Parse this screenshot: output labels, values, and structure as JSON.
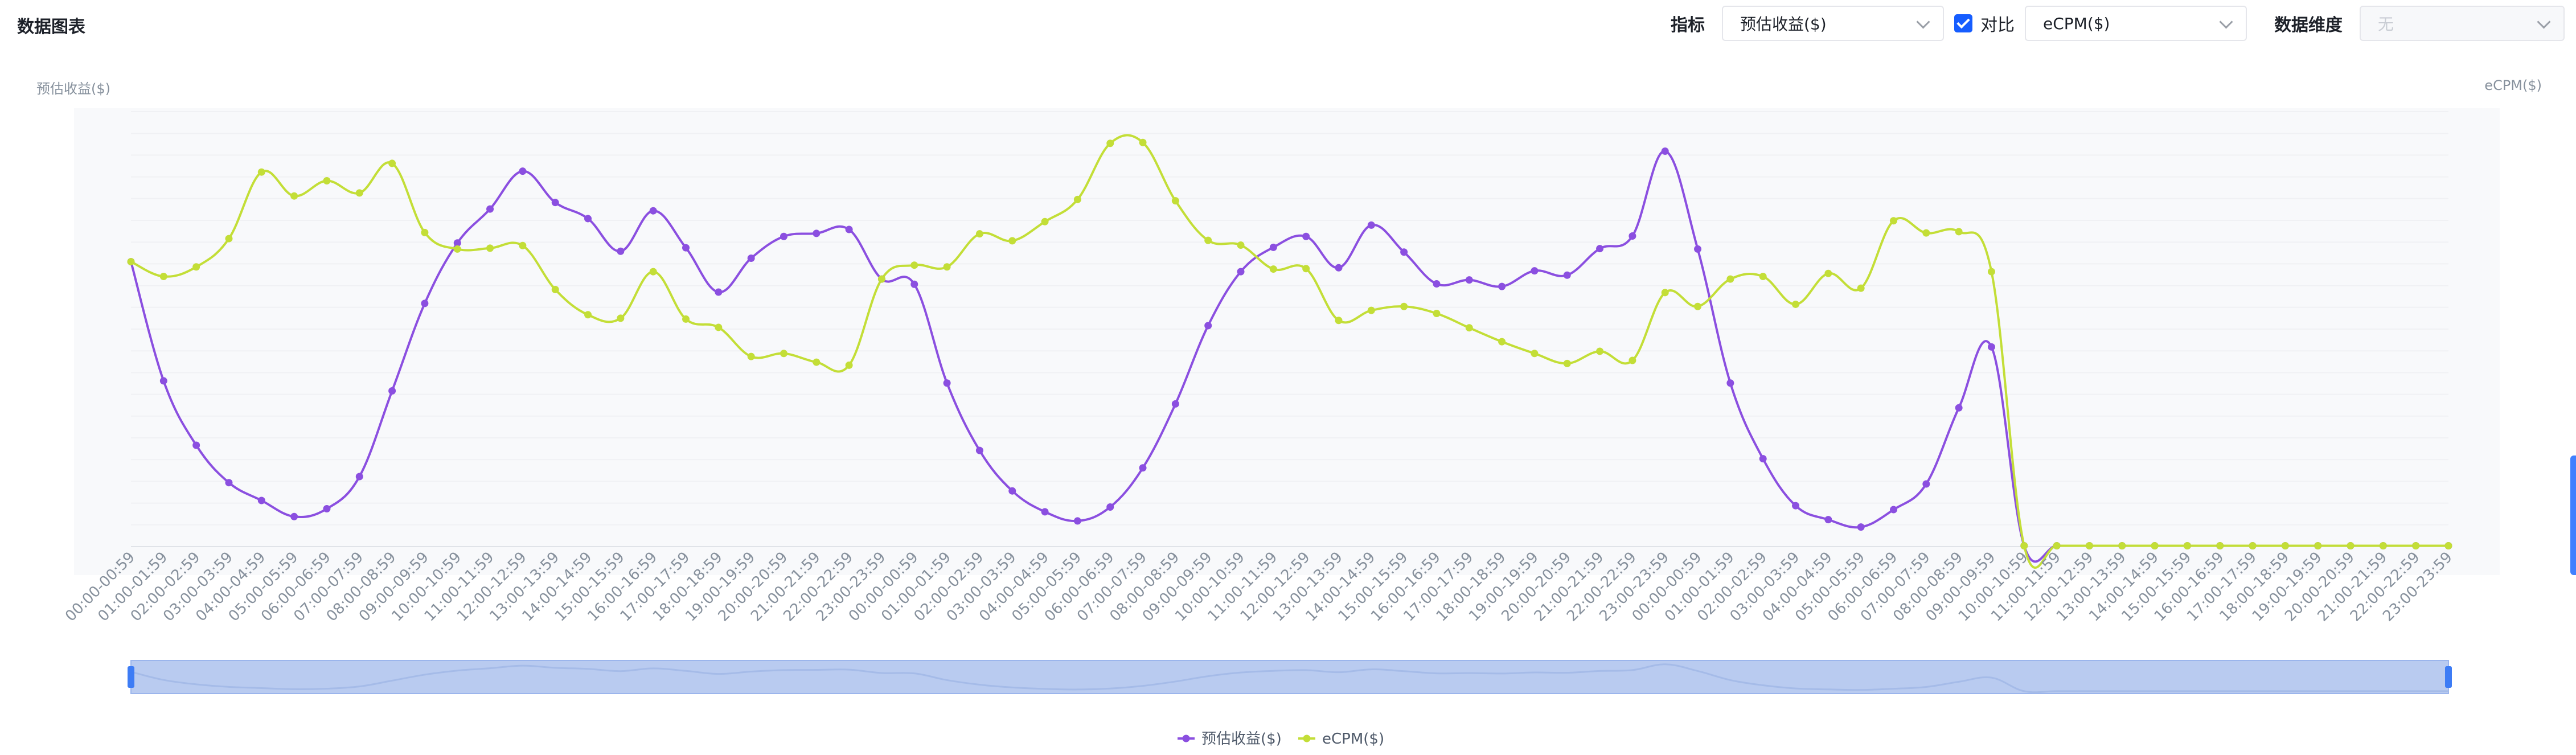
{
  "header": {
    "title": "数据图表",
    "metric_label": "指标",
    "metric_value": "预估收益($)",
    "compare_label": "对比",
    "compare_value": "eCPM($)",
    "dimension_label": "数据维度",
    "dimension_value": "无"
  },
  "colors": {
    "series1": "#8b4fe0",
    "series2": "#c3de37",
    "accent": "#165dff"
  },
  "chart_data": {
    "type": "line",
    "smooth": true,
    "xlabel": "",
    "ylabel": "预估收益($)",
    "y2label": "eCPM($)",
    "grid": true,
    "legend": "bottom-center",
    "zoom_slider": true,
    "x": [
      "00:00-00:59",
      "01:00-01:59",
      "02:00-02:59",
      "03:00-03:59",
      "04:00-04:59",
      "05:00-05:59",
      "06:00-06:59",
      "07:00-07:59",
      "08:00-08:59",
      "09:00-09:59",
      "10:00-10:59",
      "11:00-11:59",
      "12:00-12:59",
      "13:00-13:59",
      "14:00-14:59",
      "15:00-15:59",
      "16:00-16:59",
      "17:00-17:59",
      "18:00-18:59",
      "19:00-19:59",
      "20:00-20:59",
      "21:00-21:59",
      "22:00-22:59",
      "23:00-23:59",
      "00:00-00:59",
      "01:00-01:59",
      "02:00-02:59",
      "03:00-03:59",
      "04:00-04:59",
      "05:00-05:59",
      "06:00-06:59",
      "07:00-07:59",
      "08:00-08:59",
      "09:00-09:59",
      "10:00-10:59",
      "11:00-11:59",
      "12:00-12:59",
      "13:00-13:59",
      "14:00-14:59",
      "15:00-15:59",
      "16:00-16:59",
      "17:00-17:59",
      "18:00-18:59",
      "19:00-19:59",
      "20:00-20:59",
      "21:00-21:59",
      "22:00-22:59",
      "23:00-23:59",
      "00:00-00:59",
      "01:00-01:59",
      "02:00-02:59",
      "03:00-03:59",
      "04:00-04:59",
      "05:00-05:59",
      "06:00-06:59",
      "07:00-07:59",
      "08:00-08:59",
      "09:00-09:59",
      "10:00-10:59",
      "11:00-11:59",
      "12:00-12:59",
      "13:00-13:59",
      "14:00-14:59",
      "15:00-15:59",
      "16:00-16:59",
      "17:00-17:59",
      "18:00-18:59",
      "19:00-19:59",
      "20:00-20:59",
      "21:00-21:59",
      "22:00-22:59",
      "23:00-23:59"
    ],
    "ylim": [
      0,
      100
    ],
    "y2lim": [
      0,
      100
    ],
    "series": [
      {
        "name": "预估收益($)",
        "axis": "left",
        "values": [
          65.5,
          38.1,
          23.3,
          14.7,
          10.6,
          6.9,
          8.7,
          16.1,
          35.8,
          55.9,
          69.8,
          77.6,
          86.3,
          79.1,
          75.4,
          67.9,
          77.2,
          68.7,
          58.5,
          66.3,
          71.3,
          72.0,
          72.9,
          61.5,
          60.3,
          37.6,
          22.1,
          12.8,
          8.0,
          5.9,
          9.1,
          18.1,
          32.8,
          50.8,
          63.2,
          68.8,
          71.3,
          64.1,
          73.9,
          67.7,
          60.4,
          61.3,
          59.8,
          63.4,
          62.4,
          68.5,
          71.4,
          90.9,
          68.4,
          37.6,
          20.2,
          9.4,
          6.2,
          4.5,
          8.5,
          14.4,
          31.9,
          45.9,
          0.2,
          0.2,
          0.2,
          0.2,
          0.2,
          0.2,
          0.2,
          0.2,
          0.2,
          0.2,
          0.2,
          0.2,
          0.2,
          0.2
        ]
      },
      {
        "name": "eCPM($)",
        "axis": "right",
        "values": [
          65.5,
          62.1,
          64.3,
          70.8,
          86.1,
          80.6,
          84.1,
          81.3,
          88.1,
          72.2,
          68.4,
          68.6,
          69.2,
          59.1,
          53.3,
          52.5,
          63.2,
          52.3,
          50.4,
          43.7,
          44.4,
          42.4,
          41.7,
          61.5,
          64.7,
          64.3,
          71.9,
          70.3,
          74.7,
          79.8,
          92.7,
          92.9,
          79.5,
          70.4,
          69.3,
          63.8,
          63.9,
          52.0,
          54.3,
          55.2,
          53.6,
          50.3,
          47.1,
          44.4,
          42.1,
          44.9,
          42.8,
          58.4,
          55.2,
          61.5,
          62.1,
          55.7,
          62.8,
          59.4,
          74.9,
          72.1,
          72.4,
          63.2,
          0.2,
          0.2,
          0.2,
          0.2,
          0.2,
          0.2,
          0.2,
          0.2,
          0.2,
          0.2,
          0.2,
          0.2,
          0.2,
          0.2
        ]
      }
    ]
  }
}
